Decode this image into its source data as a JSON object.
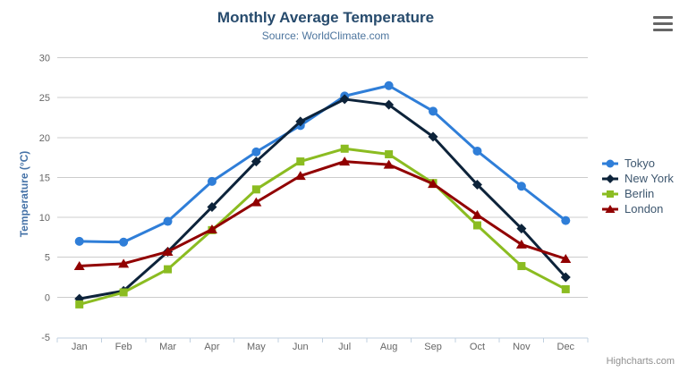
{
  "title": "Monthly Average Temperature",
  "subtitle": "Source: WorldClimate.com",
  "credits": "Highcharts.com",
  "colors": {
    "title": "#274b6d",
    "subtitle": "#4d759e",
    "axis_title": "#4572a7",
    "axis_label": "#666666",
    "gridline": "#cccccc",
    "axis_line": "#c0d0e0",
    "legend_text": "#3e576f",
    "credits_text": "#909090",
    "menu_icon": "#666666",
    "background": "#ffffff"
  },
  "chart_data": {
    "type": "line",
    "title": "Monthly Average Temperature",
    "subtitle": "Source: WorldClimate.com",
    "xlabel": "",
    "ylabel": "Temperature (°C)",
    "categories": [
      "Jan",
      "Feb",
      "Mar",
      "Apr",
      "May",
      "Jun",
      "Jul",
      "Aug",
      "Sep",
      "Oct",
      "Nov",
      "Dec"
    ],
    "series": [
      {
        "name": "Tokyo",
        "color": "#2f7ed8",
        "marker": "circle",
        "values": [
          7.0,
          6.9,
          9.5,
          14.5,
          18.2,
          21.5,
          25.2,
          26.5,
          23.3,
          18.3,
          13.9,
          9.6
        ]
      },
      {
        "name": "New York",
        "color": "#0d233a",
        "marker": "diamond",
        "values": [
          -0.2,
          0.8,
          5.7,
          11.3,
          17.0,
          22.0,
          24.8,
          24.1,
          20.1,
          14.1,
          8.6,
          2.5
        ]
      },
      {
        "name": "Berlin",
        "color": "#8bbc21",
        "marker": "square",
        "values": [
          -0.9,
          0.6,
          3.5,
          8.4,
          13.5,
          17.0,
          18.6,
          17.9,
          14.3,
          9.0,
          3.9,
          1.0
        ]
      },
      {
        "name": "London",
        "color": "#910000",
        "marker": "triangle",
        "values": [
          3.9,
          4.2,
          5.7,
          8.5,
          11.9,
          15.2,
          17.0,
          16.6,
          14.2,
          10.3,
          6.6,
          4.8
        ]
      }
    ],
    "ylim": [
      -5,
      30
    ],
    "yticks": [
      -5,
      0,
      5,
      10,
      15,
      20,
      25,
      30
    ],
    "grid": true,
    "legend_position": "right"
  }
}
